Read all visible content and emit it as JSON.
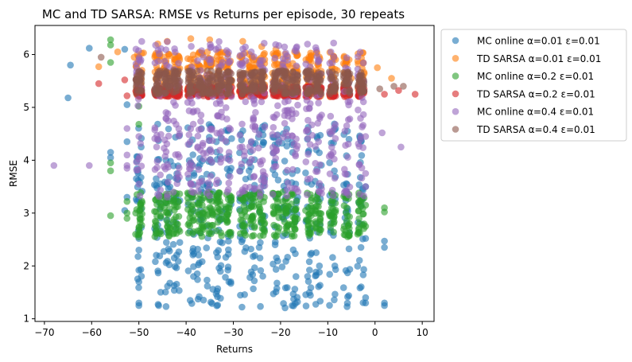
{
  "chart_data": {
    "type": "scatter",
    "title": "MC and TD SARSA: RMSE vs Returns per episode, 30 repeats",
    "xlabel": "Returns",
    "ylabel": "RMSE",
    "xlim": [
      -72,
      12.5
    ],
    "ylim": [
      0.95,
      6.55
    ],
    "xticks": [
      -70,
      -60,
      -50,
      -40,
      -30,
      -20,
      -10,
      0,
      10
    ],
    "yticks": [
      1,
      2,
      3,
      4,
      5,
      6
    ],
    "grid": false,
    "legend_position": "outside-top-right",
    "marker_alpha": 0.6,
    "return_columns": [
      -50,
      -46,
      -44,
      -42,
      -39,
      -37,
      -35,
      -33,
      -31,
      -28,
      -26,
      -24,
      -21,
      -19,
      -17,
      -14,
      -12,
      -9,
      -6,
      -3
    ],
    "series": [
      {
        "name": "MC online α=0.01 ε=0.01",
        "color": "#1f77b4",
        "band": [
          1.2,
          4.7
        ],
        "points": [
          {
            "x": -64.5,
            "y": 5.8
          },
          {
            "x": -65,
            "y": 5.18
          },
          {
            "x": -60.5,
            "y": 6.12
          },
          {
            "x": -56,
            "y": 4.15
          },
          {
            "x": -56,
            "y": 4.05
          },
          {
            "x": -53,
            "y": 6.1
          },
          {
            "x": -52.5,
            "y": 5.05
          },
          {
            "x": -52.5,
            "y": 4.35
          },
          {
            "x": -52.5,
            "y": 3.3
          },
          {
            "x": -53,
            "y": 3.05
          },
          {
            "x": -50,
            "y": 1.92
          },
          {
            "x": -50,
            "y": 1.7
          },
          {
            "x": -50,
            "y": 1.3
          },
          {
            "x": -50,
            "y": 1.25
          },
          {
            "x": -50,
            "y": 2.3
          },
          {
            "x": -50,
            "y": 3.25
          },
          {
            "x": 2,
            "y": 2.47
          },
          {
            "x": 2,
            "y": 2.35
          },
          {
            "x": 2,
            "y": 1.3
          },
          {
            "x": 2,
            "y": 1.25
          },
          {
            "x": -2,
            "y": 1.4
          },
          {
            "x": -2,
            "y": 1.3
          },
          {
            "x": -2,
            "y": 2.52
          },
          {
            "x": -2,
            "y": 3.5
          }
        ]
      },
      {
        "name": "TD SARSA α=0.01 ε=0.01",
        "color": "#ff7f0e",
        "band": [
          5.2,
          6.05
        ],
        "points": [
          {
            "x": -58.5,
            "y": 5.77
          },
          {
            "x": -54.5,
            "y": 6.05
          },
          {
            "x": -51,
            "y": 5.95
          },
          {
            "x": -49,
            "y": 6.03
          },
          {
            "x": -46,
            "y": 6.2
          },
          {
            "x": -44,
            "y": 6.25
          },
          {
            "x": -39,
            "y": 6.3
          },
          {
            "x": -35,
            "y": 6.28
          },
          {
            "x": -28,
            "y": 6.25
          },
          {
            "x": -24,
            "y": 6.15
          },
          {
            "x": -21,
            "y": 6.1
          },
          {
            "x": -17,
            "y": 6.05
          },
          {
            "x": -14,
            "y": 5.95
          },
          {
            "x": 0.5,
            "y": 5.75
          },
          {
            "x": 3.5,
            "y": 5.55
          },
          {
            "x": -5,
            "y": 5.55
          },
          {
            "x": -8,
            "y": 5.7
          }
        ]
      },
      {
        "name": "MC online α=0.2 ε=0.01",
        "color": "#2ca02c",
        "band": [
          2.55,
          3.4
        ],
        "points": [
          {
            "x": -56,
            "y": 6.28
          },
          {
            "x": -56,
            "y": 6.18
          },
          {
            "x": -56,
            "y": 5.85
          },
          {
            "x": -56,
            "y": 3.95
          },
          {
            "x": -56,
            "y": 3.8
          },
          {
            "x": -56,
            "y": 2.95
          },
          {
            "x": -52.5,
            "y": 3.22
          },
          {
            "x": -52.5,
            "y": 3.0
          },
          {
            "x": -52.5,
            "y": 2.9
          },
          {
            "x": -50,
            "y": 5.02
          },
          {
            "x": -50,
            "y": 4.68
          },
          {
            "x": -50,
            "y": 2.72
          },
          {
            "x": 2,
            "y": 3.1
          },
          {
            "x": 2,
            "y": 3.02
          },
          {
            "x": -2,
            "y": 3.15
          },
          {
            "x": -2,
            "y": 2.75
          },
          {
            "x": -6,
            "y": 3.3
          },
          {
            "x": -6,
            "y": 2.85
          }
        ]
      },
      {
        "name": "TD SARSA α=0.2 ε=0.01",
        "color": "#d62728",
        "band": [
          5.2,
          5.4
        ],
        "points": [
          {
            "x": -58.5,
            "y": 5.45
          },
          {
            "x": -53,
            "y": 5.52
          },
          {
            "x": -52.5,
            "y": 5.22
          },
          {
            "x": -50,
            "y": 5.4
          },
          {
            "x": 2,
            "y": 5.25
          },
          {
            "x": 5,
            "y": 5.32
          },
          {
            "x": 8.5,
            "y": 5.25
          }
        ]
      },
      {
        "name": "MC online α=0.4 ε=0.01",
        "color": "#9467bd",
        "band": [
          3.3,
          6.25
        ],
        "points": [
          {
            "x": -68,
            "y": 3.9
          },
          {
            "x": -60.5,
            "y": 3.9
          },
          {
            "x": -52.5,
            "y": 4.6
          },
          {
            "x": -52.5,
            "y": 4.1
          },
          {
            "x": -52.5,
            "y": 3.85
          },
          {
            "x": -52.5,
            "y": 3.9
          },
          {
            "x": -50,
            "y": 4.45
          },
          {
            "x": -50,
            "y": 3.55
          },
          {
            "x": -6,
            "y": 4.65
          },
          {
            "x": -2,
            "y": 4.45
          },
          {
            "x": -2,
            "y": 3.75
          },
          {
            "x": -2,
            "y": 3.5
          },
          {
            "x": 1.5,
            "y": 4.52
          },
          {
            "x": 5.5,
            "y": 4.25
          },
          {
            "x": -9,
            "y": 4.55
          }
        ]
      },
      {
        "name": "TD SARSA α=0.4 ε=0.01",
        "color": "#8c564b",
        "band": [
          5.25,
          5.7
        ],
        "points": [
          {
            "x": -58,
            "y": 5.95
          },
          {
            "x": -50,
            "y": 5.6
          },
          {
            "x": -50,
            "y": 5.3
          },
          {
            "x": -50.5,
            "y": 5.45
          },
          {
            "x": 1,
            "y": 5.35
          },
          {
            "x": 4,
            "y": 5.4
          },
          {
            "x": 6,
            "y": 5.4
          }
        ]
      }
    ]
  }
}
